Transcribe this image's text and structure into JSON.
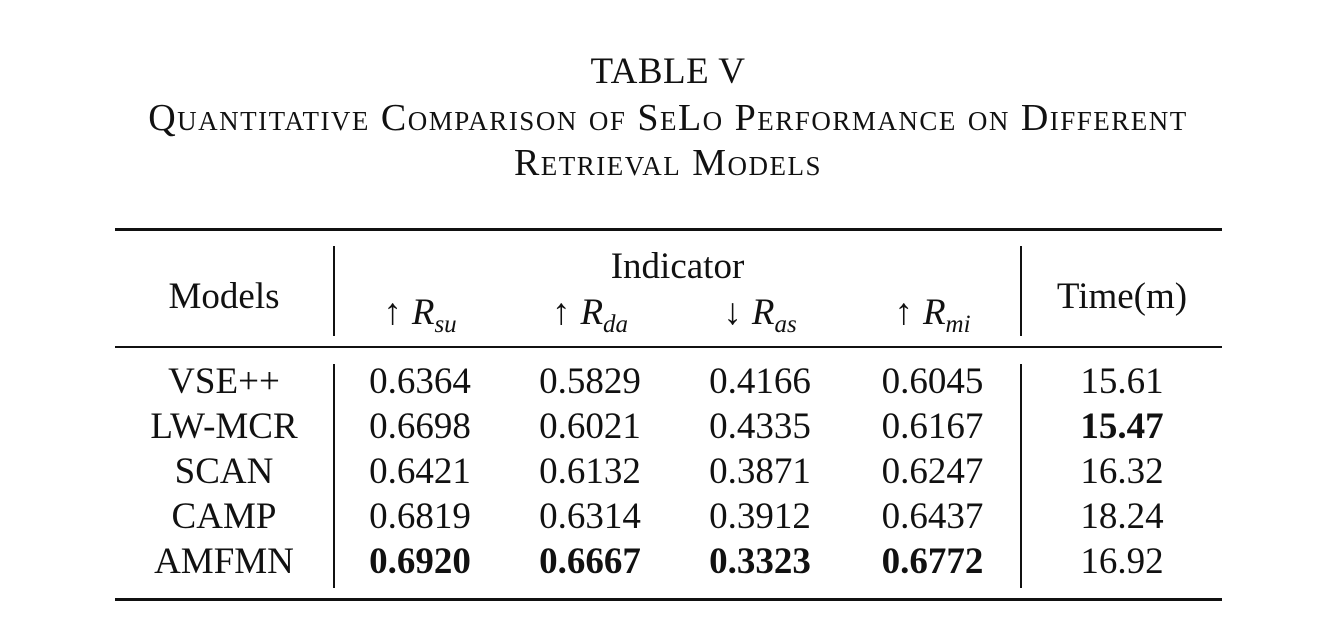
{
  "caption": {
    "label": "TABLE V",
    "line1": "Quantitative Comparison of SeLo Performance on Different",
    "line2": "Retrieval Models"
  },
  "table": {
    "header": {
      "models": "Models",
      "indicator": "Indicator",
      "time": "Time(m)",
      "metrics": [
        {
          "arrow": "↑",
          "symbol": "R",
          "sub": "su"
        },
        {
          "arrow": "↑",
          "symbol": "R",
          "sub": "da"
        },
        {
          "arrow": "↓",
          "symbol": "R",
          "sub": "as"
        },
        {
          "arrow": "↑",
          "symbol": "R",
          "sub": "mi"
        }
      ]
    },
    "rows": [
      {
        "model": "VSE++",
        "rsu": "0.6364",
        "rda": "0.5829",
        "ras": "0.4166",
        "rmi": "0.6045",
        "time": "15.61"
      },
      {
        "model": "LW-MCR",
        "rsu": "0.6698",
        "rda": "0.6021",
        "ras": "0.4335",
        "rmi": "0.6167",
        "time": "15.47"
      },
      {
        "model": "SCAN",
        "rsu": "0.6421",
        "rda": "0.6132",
        "ras": "0.3871",
        "rmi": "0.6247",
        "time": "16.32"
      },
      {
        "model": "CAMP",
        "rsu": "0.6819",
        "rda": "0.6314",
        "ras": "0.3912",
        "rmi": "0.6437",
        "time": "18.24"
      },
      {
        "model": "AMFMN",
        "rsu": "0.6920",
        "rda": "0.6667",
        "ras": "0.3323",
        "rmi": "0.6772",
        "time": "16.92"
      }
    ]
  }
}
